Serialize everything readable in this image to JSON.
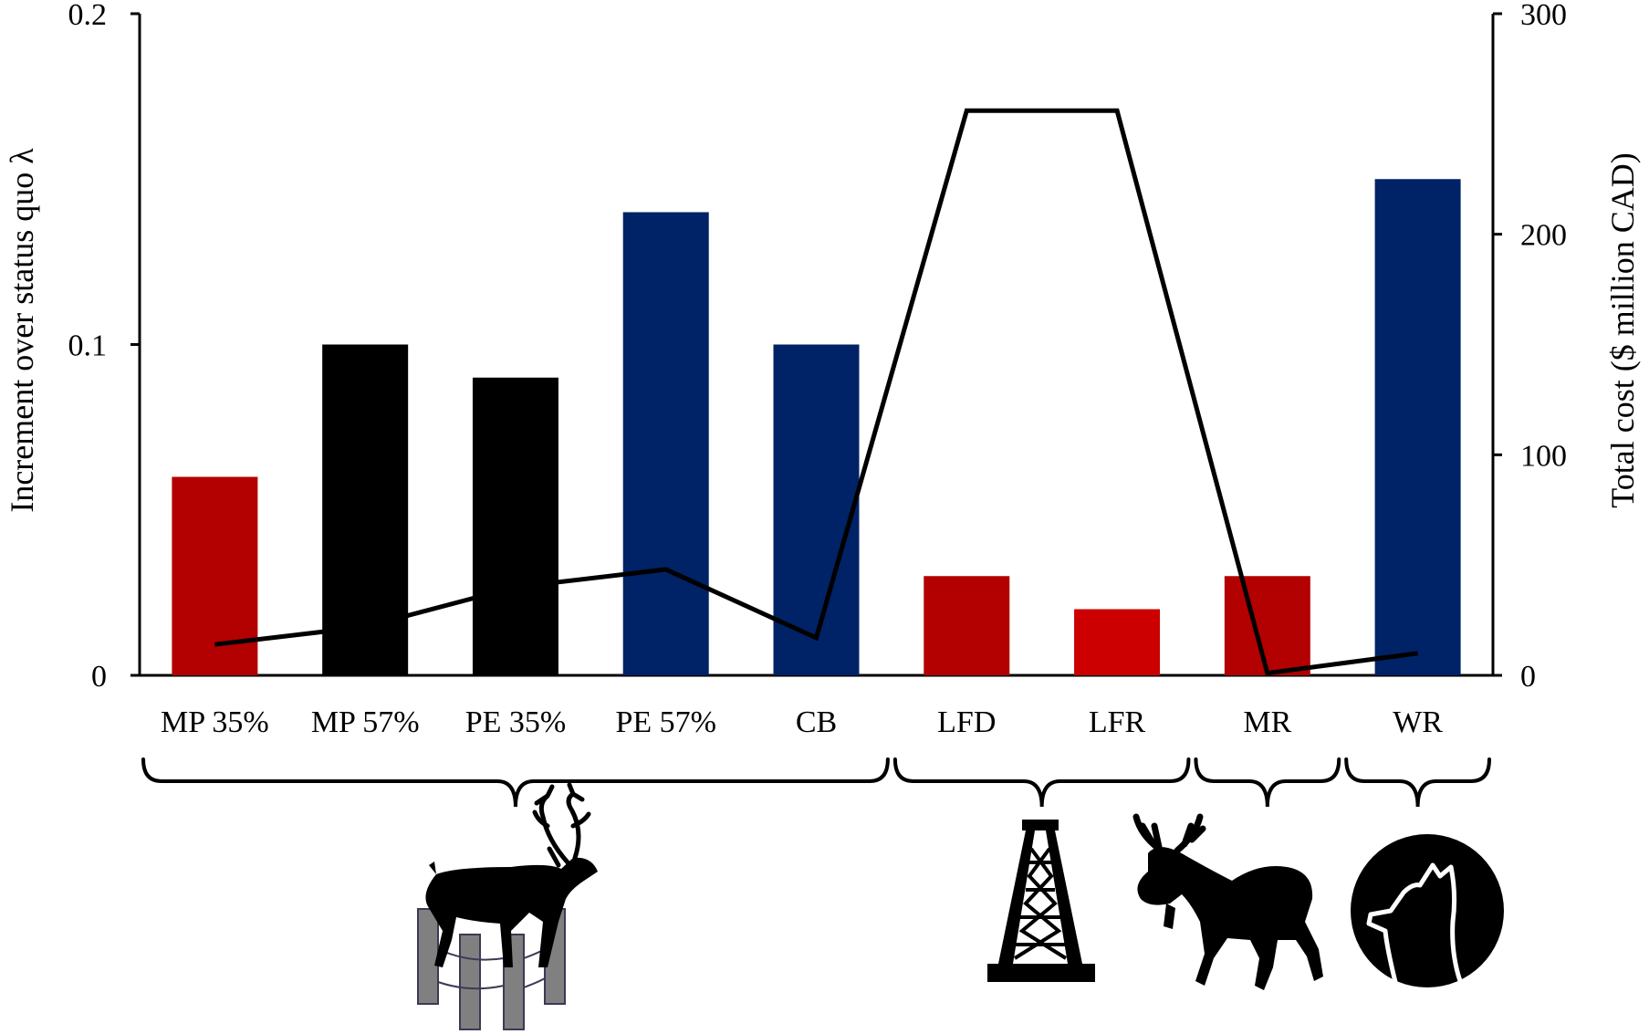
{
  "chart_data": {
    "type": "bar",
    "categories": [
      "MP 35%",
      "MP 57%",
      "PE 35%",
      "PE 57%",
      "CB",
      "LFD",
      "LFR",
      "MR",
      "WR"
    ],
    "series": [
      {
        "kind": "bar",
        "axis": "left",
        "values": [
          0.06,
          0.1,
          0.09,
          0.14,
          0.1,
          0.03,
          0.02,
          0.03,
          0.15
        ],
        "colors": [
          "#b30000",
          "#000000",
          "#000000",
          "#002266",
          "#002266",
          "#b30000",
          "#cc0000",
          "#b30000",
          "#002266"
        ]
      },
      {
        "kind": "line",
        "axis": "right",
        "values": [
          14,
          22,
          40,
          48,
          17,
          256,
          256,
          1,
          10
        ],
        "color": "#000000"
      }
    ],
    "ylabel": "Increment over status quo λ",
    "y2label": "Total cost ($ million CAD)",
    "ylim": [
      0,
      0.2
    ],
    "y2lim": [
      0,
      300
    ],
    "yticks": [
      "0",
      "0.1",
      "0.2"
    ],
    "y2ticks": [
      "0",
      "100",
      "200",
      "300"
    ],
    "grid": false,
    "groups": [
      {
        "from": 0,
        "to": 4,
        "icon": "caribou-fence-icon"
      },
      {
        "from": 5,
        "to": 6,
        "icon": "oil-derrick-icon"
      },
      {
        "from": 7,
        "to": 7,
        "icon": "moose-icon"
      },
      {
        "from": 8,
        "to": 8,
        "icon": "howling-wolf-icon"
      }
    ]
  }
}
